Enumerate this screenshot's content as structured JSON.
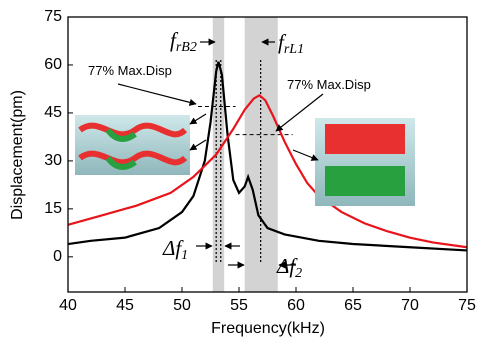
{
  "chart_data": {
    "type": "line",
    "x_label": "Frequency(kHz)",
    "y_label": "Displacement(pm)",
    "xlim": [
      40,
      75
    ],
    "xticks": [
      40,
      45,
      50,
      55,
      60,
      65,
      70,
      75
    ],
    "ylim": [
      -11,
      75
    ],
    "yticks": [
      0,
      15,
      30,
      45,
      60,
      75
    ],
    "series": [
      {
        "color": "#000000",
        "x": [
          40,
          42,
          45,
          48,
          50,
          51,
          52,
          52.5,
          53,
          53.2,
          53.5,
          54,
          54.5,
          55,
          55.5,
          55.8,
          56.2,
          56.7,
          57.5,
          59,
          62,
          65,
          70,
          75
        ],
        "values": [
          4,
          5,
          6,
          9,
          14,
          19,
          30,
          42,
          58,
          61,
          57,
          38,
          24,
          20,
          22,
          25,
          21,
          13,
          9,
          7,
          5,
          4,
          3,
          2
        ]
      },
      {
        "color": "#e8141b",
        "x": [
          40,
          43,
          46,
          49,
          51,
          53,
          54.5,
          55.5,
          56.3,
          56.8,
          57.3,
          58,
          59,
          60,
          61,
          62,
          64,
          66,
          68,
          70,
          72,
          75
        ],
        "values": [
          10,
          13,
          16,
          20,
          25,
          32,
          40,
          46,
          49.5,
          50.5,
          49,
          44,
          36,
          29,
          23,
          19,
          14,
          10.5,
          8,
          6,
          4.5,
          3
        ]
      }
    ],
    "shaded_regions": [
      [
        52.7,
        53.7
      ],
      [
        55.5,
        58.4
      ]
    ],
    "vlines": [
      53.0,
      53.4,
      56.9
    ],
    "hlines": [
      {
        "y": 47,
        "x": [
          51.4,
          54.7
        ]
      },
      {
        "y": 38.2,
        "x": [
          54.7,
          59.7
        ]
      }
    ],
    "annotations": [
      {
        "text": "f",
        "sub": "rB2"
      },
      {
        "text": "f",
        "sub": "rL1"
      },
      {
        "text": "77% Max.Disp"
      },
      {
        "text": "77% Max.Disp"
      },
      {
        "text": "Δf",
        "sub": "1"
      },
      {
        "text": "Δf",
        "sub": "2"
      }
    ]
  }
}
